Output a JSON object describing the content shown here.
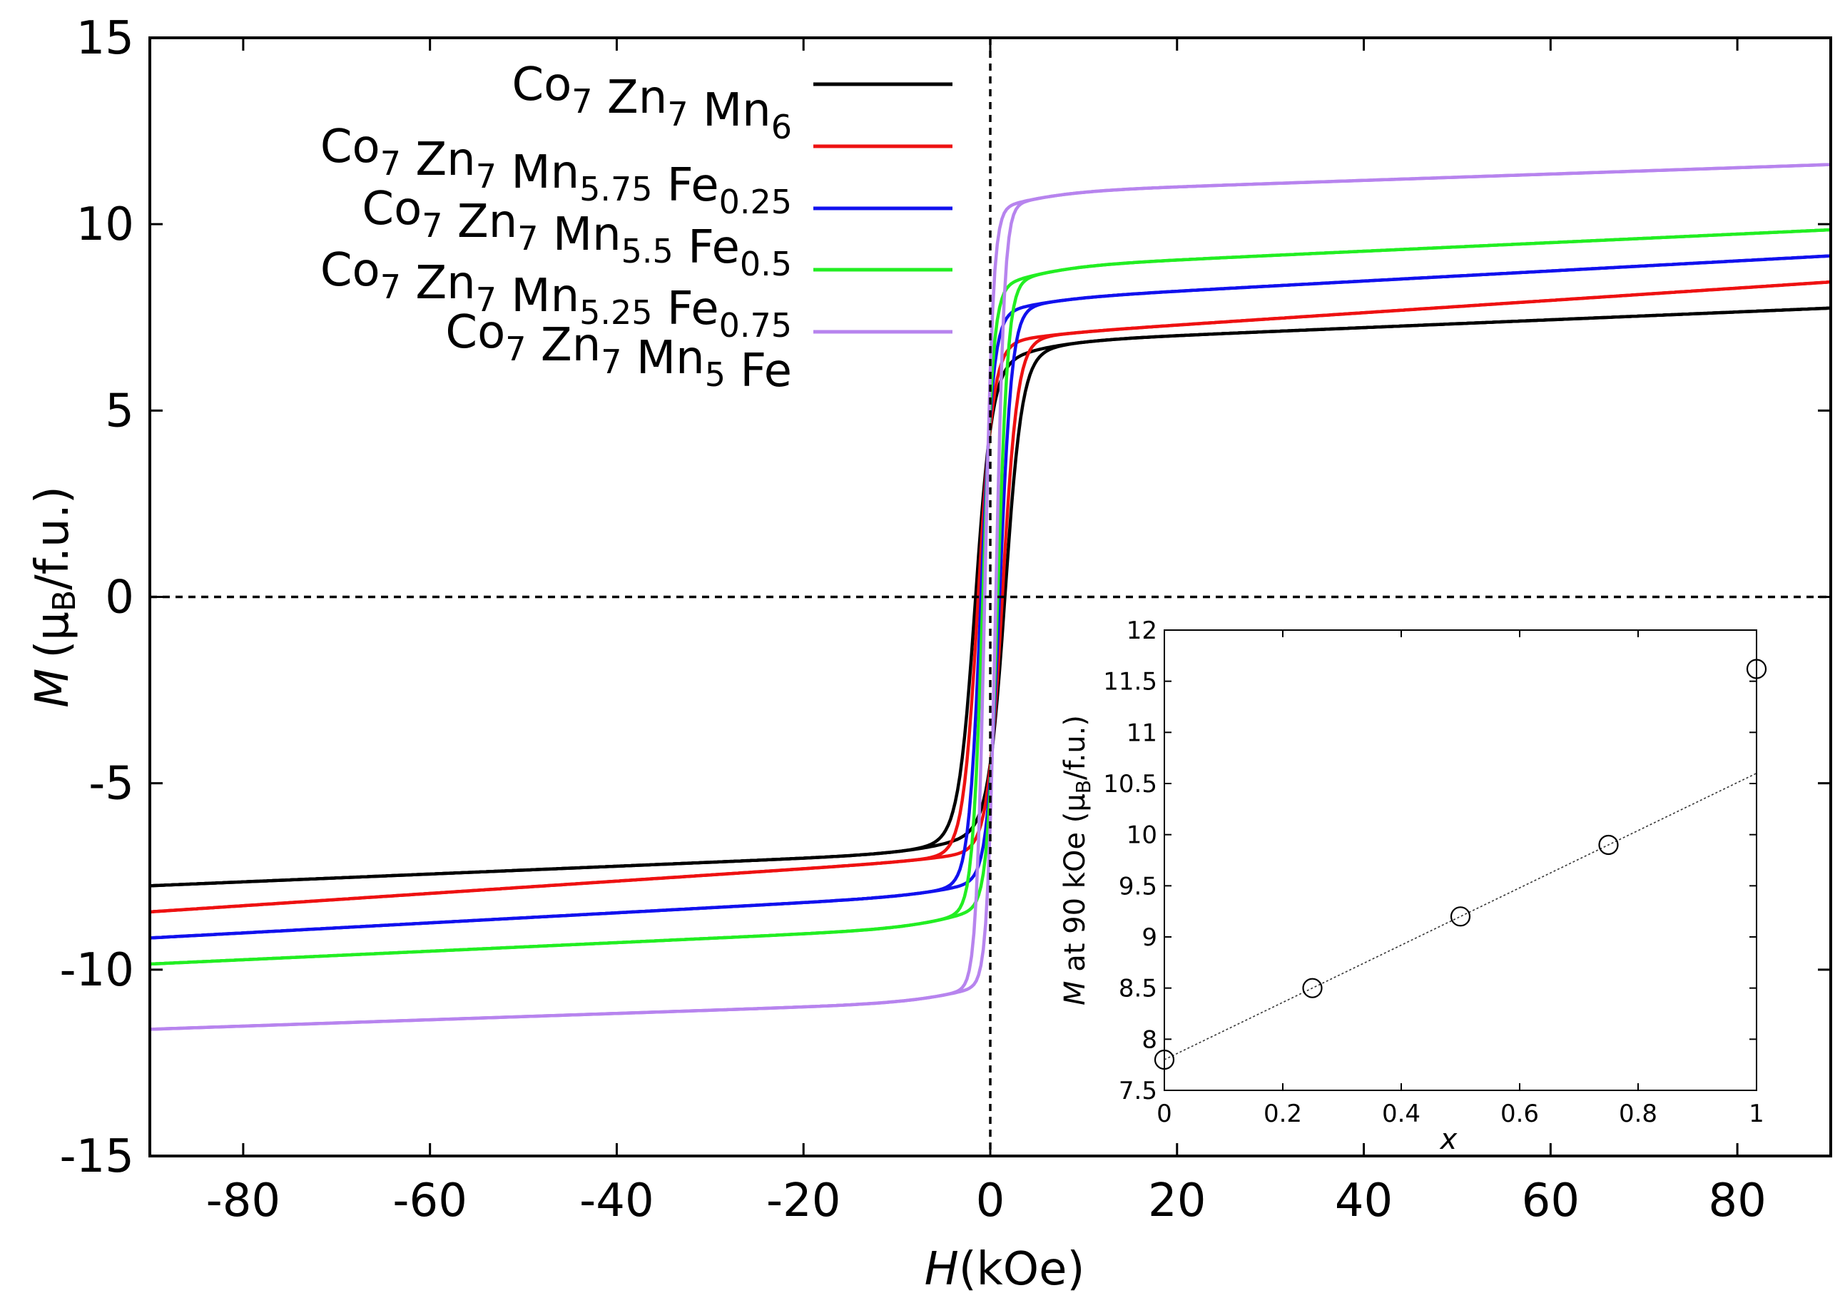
{
  "chart_data": {
    "type": "line",
    "title": "",
    "xlabel": "H",
    "xlabel_unit": "(kOe)",
    "ylabel": "M",
    "ylabel_unit_prefix": "(μ",
    "ylabel_unit_sub": "B",
    "ylabel_unit_suffix": "/f.u.)",
    "xlim": [
      -90,
      90
    ],
    "ylim": [
      -15,
      15
    ],
    "xticks": [
      -80,
      -60,
      -40,
      -20,
      0,
      20,
      40,
      60,
      80
    ],
    "xtick_labels": [
      "-80",
      "-60",
      "-40",
      "-20",
      "0",
      "20",
      "40",
      "60",
      "80"
    ],
    "yticks": [
      -15,
      -10,
      -5,
      0,
      5,
      10,
      15
    ],
    "ytick_labels": [
      "-15",
      "-10",
      "-5",
      "0",
      "5",
      "10",
      "15"
    ],
    "grid": false,
    "zero_lines": "dashed at H=0 and M=0",
    "legend_position": "top-center",
    "series": [
      {
        "name": "Co7 Zn7 Mn6",
        "label_parts": [
          [
            "Co",
            "7"
          ],
          [
            " Zn",
            "7"
          ],
          [
            " Mn",
            "6"
          ]
        ],
        "color": "#000000",
        "saturation_high": 7.75,
        "low_field_magnetization": 6.3,
        "shoulder": 6.7,
        "slope": 0.0105,
        "coercive_field": 1.6,
        "switch_width": 1.8,
        "min_field_low": -90,
        "max_field_high": 90
      },
      {
        "name": "Co7 Zn7 Mn5.75 Fe0.25",
        "label_parts": [
          [
            "Co",
            "7"
          ],
          [
            " Zn",
            "7"
          ],
          [
            " Mn",
            "5.75"
          ],
          [
            " Fe",
            "0.25"
          ]
        ],
        "color": "#ee1111",
        "saturation_high": 8.45,
        "low_field_magnetization": 6.8,
        "shoulder": 7.1,
        "slope": 0.0165,
        "coercive_field": 1.3,
        "switch_width": 1.6,
        "min_field_low": -90,
        "max_field_high": 90
      },
      {
        "name": "Co7 Zn7 Mn5.5 Fe0.5",
        "label_parts": [
          [
            "Co",
            "7"
          ],
          [
            " Zn",
            "7"
          ],
          [
            " Mn",
            "5.5"
          ],
          [
            " Fe",
            "0.5"
          ]
        ],
        "color": "#1111ee",
        "saturation_high": 9.15,
        "low_field_magnetization": 7.6,
        "shoulder": 7.9,
        "slope": 0.0135,
        "coercive_field": 1.0,
        "switch_width": 1.3,
        "min_field_low": -90,
        "max_field_high": 90
      },
      {
        "name": "Co7 Zn7 Mn5.25 Fe0.75",
        "label_parts": [
          [
            "Co",
            "7"
          ],
          [
            " Zn",
            "7"
          ],
          [
            " Mn",
            "5.25"
          ],
          [
            " Fe",
            "0.75"
          ]
        ],
        "color": "#22ee22",
        "saturation_high": 9.85,
        "low_field_magnetization": 8.3,
        "shoulder": 8.7,
        "slope": 0.0115,
        "coercive_field": 0.8,
        "switch_width": 1.1,
        "min_field_low": -90,
        "max_field_high": 90
      },
      {
        "name": "Co7 Zn7 Mn5 Fe",
        "label_parts": [
          [
            "Co",
            "7"
          ],
          [
            " Zn",
            "7"
          ],
          [
            " Mn",
            "5"
          ],
          [
            " Fe",
            ""
          ]
        ],
        "color": "#b784ee",
        "saturation_high": 11.6,
        "low_field_magnetization": 10.4,
        "shoulder": 10.8,
        "slope": 0.0085,
        "coercive_field": 0.6,
        "switch_width": 0.9,
        "min_field_low": -90,
        "max_field_high": 90
      }
    ],
    "inset": {
      "type": "scatter",
      "xlabel": "x",
      "ylabel_prefix": "M",
      "ylabel_middle": " at 90 kOe (μ",
      "ylabel_sub": "B",
      "ylabel_suffix": "/f.u.)",
      "xlim": [
        0,
        1
      ],
      "ylim": [
        7.5,
        12
      ],
      "xticks": [
        0,
        0.2,
        0.4,
        0.6,
        0.8,
        1
      ],
      "xtick_labels": [
        "0",
        "0.2",
        "0.4",
        "0.6",
        "0.8",
        "1"
      ],
      "yticks": [
        7.5,
        8,
        8.5,
        9,
        9.5,
        10,
        10.5,
        11,
        11.5,
        12
      ],
      "ytick_labels": [
        "7.5",
        "8",
        "8.5",
        "9",
        "9.5",
        "10",
        "10.5",
        "11",
        "11.5",
        "12"
      ],
      "points": [
        {
          "x": 0,
          "y": 7.8
        },
        {
          "x": 0.25,
          "y": 8.5
        },
        {
          "x": 0.5,
          "y": 9.2
        },
        {
          "x": 0.75,
          "y": 9.9
        },
        {
          "x": 1,
          "y": 11.62
        }
      ],
      "fit_line": {
        "x": [
          0,
          1
        ],
        "y": [
          7.8,
          10.6
        ]
      }
    }
  }
}
